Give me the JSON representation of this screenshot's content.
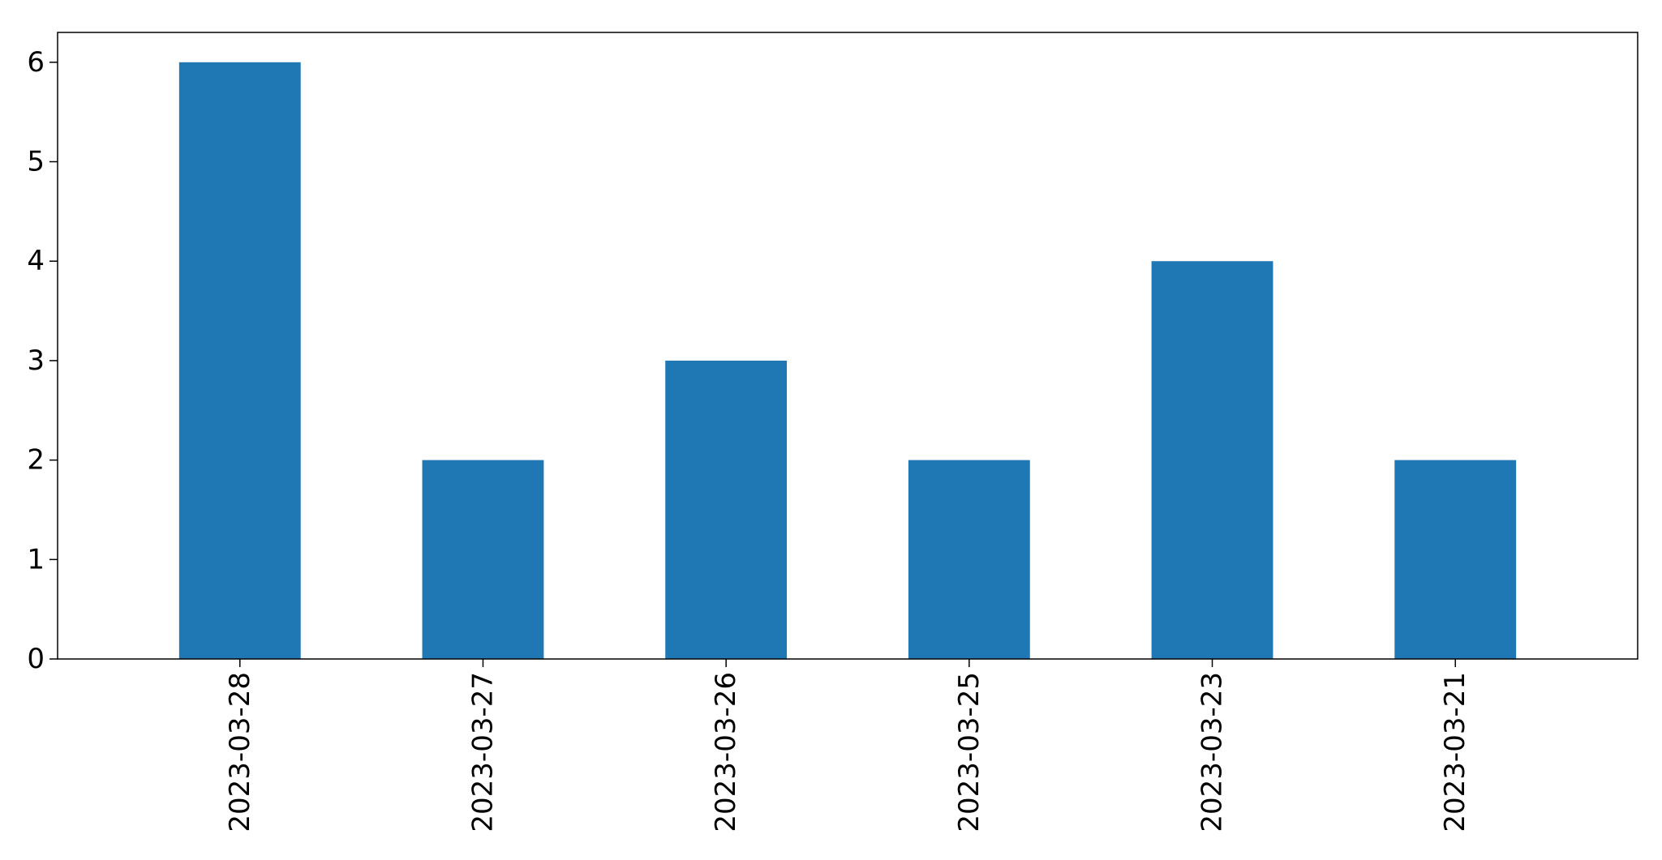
{
  "chart_data": {
    "type": "bar",
    "title": "",
    "xlabel": "",
    "ylabel": "",
    "categories": [
      "2023-03-28",
      "2023-03-27",
      "2023-03-26",
      "2023-03-25",
      "2023-03-23",
      "2023-03-21"
    ],
    "values": [
      6,
      2,
      3,
      2,
      4,
      2
    ],
    "ylim": [
      0,
      6.3
    ],
    "yticks": [
      0,
      1,
      2,
      3,
      4,
      5,
      6
    ],
    "bar_color": "#1f77b4",
    "grid": false,
    "legend": "none"
  }
}
